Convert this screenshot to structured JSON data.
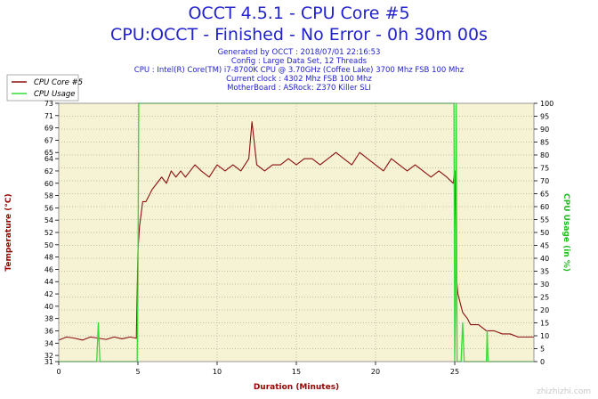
{
  "header": {
    "title_line1": "OCCT 4.5.1 - CPU Core #5",
    "title_line2": "CPU:OCCT - Finished - No Error - 0h 30m 00s",
    "info": [
      "Generated by OCCT : 2018/07/01 22:16:53",
      "Config : Large Data Set, 12 Threads",
      "CPU : Intel(R) Core(TM) i7-8700K CPU @ 3.70GHz (Coffee Lake) 3700 Mhz FSB 100 Mhz",
      "Current clock : 4302 Mhz FSB 100 Mhz",
      "MotherBoard : ASRock: Z370 Killer SLI"
    ]
  },
  "watermark": "zhizhizhi.com",
  "colors": {
    "title": "#2222cc",
    "plot_bg": "#f6f2d4",
    "grid": "#b0ada0",
    "core_series": "#8b1010",
    "usage_series": "#33dd33",
    "ylabel_left": "#990000",
    "ylabel_right": "#22bb22",
    "xlabel": "#990000"
  },
  "chart_data": {
    "type": "line",
    "xlabel": "Duration (Minutes)",
    "ylabel": "Temperature (°C)",
    "ylabel_right": "CPU Usage (in %)",
    "xlim": [
      0,
      30
    ],
    "ylim": [
      31,
      73
    ],
    "ylim_right": [
      0,
      100
    ],
    "x_ticks": [
      "0",
      "5",
      "10",
      "15",
      "20",
      "25"
    ],
    "y_ticks": [
      "31",
      "32",
      "34",
      "36",
      "38",
      "40",
      "42",
      "44",
      "46",
      "48",
      "50",
      "52",
      "54",
      "56",
      "58",
      "60",
      "62",
      "64",
      "65",
      "67",
      "69",
      "71",
      "73"
    ],
    "y_ticks_right": [
      "0",
      "5",
      "10",
      "15",
      "20",
      "25",
      "30",
      "35",
      "40",
      "45",
      "50",
      "55",
      "60",
      "65",
      "70",
      "75",
      "80",
      "85",
      "90",
      "95",
      "100"
    ],
    "grid": true,
    "legend_position": "top-left",
    "series": [
      {
        "name": "CPU Core #5",
        "axis": "left",
        "color": "#8b1010",
        "x": [
          0,
          0.5,
          1,
          1.5,
          2,
          2.5,
          3,
          3.5,
          4,
          4.5,
          4.9,
          5.0,
          5.1,
          5.2,
          5.3,
          5.5,
          5.7,
          5.9,
          6.2,
          6.5,
          6.8,
          7.1,
          7.4,
          7.7,
          8,
          8.3,
          8.6,
          9,
          9.5,
          10,
          10.5,
          11,
          11.5,
          12,
          12.2,
          12.5,
          13,
          13.5,
          14,
          14.5,
          15,
          15.5,
          16,
          16.5,
          17,
          17.5,
          18,
          18.5,
          19,
          19.5,
          20,
          20.5,
          21,
          21.5,
          22,
          22.5,
          23,
          23.5,
          24,
          24.5,
          24.9,
          25.0,
          25.1,
          25.2,
          25.3,
          25.5,
          25.8,
          26,
          26.5,
          27,
          27.5,
          28,
          28.5,
          29,
          29.5,
          30
        ],
        "y": [
          34.5,
          35,
          34.8,
          34.5,
          35,
          34.8,
          34.6,
          35,
          34.7,
          35,
          34.8,
          49,
          53,
          55,
          57,
          57,
          58,
          59,
          60,
          61,
          60,
          62,
          61,
          62,
          61,
          62,
          63,
          62,
          61,
          63,
          62,
          63,
          62,
          64,
          70,
          63,
          62,
          63,
          63,
          64,
          63,
          64,
          64,
          63,
          64,
          65,
          64,
          63,
          65,
          64,
          63,
          62,
          64,
          63,
          62,
          63,
          62,
          61,
          62,
          61,
          60,
          62,
          45,
          42,
          41,
          39,
          38,
          37,
          37,
          36,
          36,
          35.5,
          35.5,
          35,
          35,
          35
        ]
      },
      {
        "name": "CPU Usage",
        "axis": "right",
        "color": "#33dd33",
        "x": [
          0,
          2.4,
          2.5,
          2.6,
          2.7,
          4.95,
          5.0,
          5.05,
          24.9,
          24.95,
          25.0,
          25.05,
          25.1,
          25.15,
          25.2,
          25.4,
          25.5,
          25.6,
          25.7,
          27.0,
          27.05,
          27.1,
          27.2,
          30
        ],
        "y": [
          0,
          0,
          15,
          0,
          0,
          0,
          30,
          100,
          100,
          100,
          0,
          20,
          100,
          0,
          0,
          0,
          15,
          0,
          0,
          0,
          12,
          0,
          0,
          0
        ]
      }
    ]
  }
}
